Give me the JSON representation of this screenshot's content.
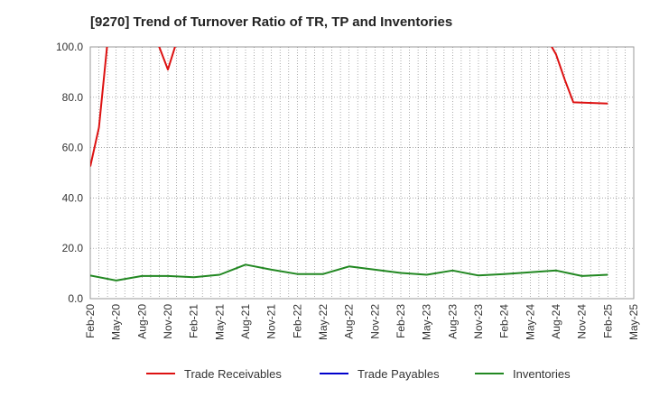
{
  "chart_data": {
    "type": "line",
    "title": "[9270]  Trend of Turnover Ratio of TR, TP and Inventories",
    "xlabel": "",
    "ylabel": "",
    "ylim": [
      0,
      100
    ],
    "yticks": [
      "0.0",
      "20.0",
      "40.0",
      "60.0",
      "80.0",
      "100.0"
    ],
    "x_tick_labels": [
      "Feb-20",
      "May-20",
      "Aug-20",
      "Nov-20",
      "Feb-21",
      "May-21",
      "Aug-21",
      "Nov-21",
      "Feb-22",
      "May-22",
      "Aug-22",
      "Nov-22",
      "Feb-23",
      "May-23",
      "Aug-23",
      "Nov-23",
      "Feb-24",
      "May-24",
      "Aug-24",
      "Nov-24",
      "Feb-25",
      "May-25"
    ],
    "x_start": "Feb-20",
    "grid": true,
    "legend_position": "bottom",
    "series": [
      {
        "name": "Trade Receivables",
        "color": "#dd1111",
        "points": [
          [
            "Feb-20",
            52.5
          ],
          [
            "Mar-20",
            68
          ],
          [
            "Apr-20",
            102
          ],
          [
            "Sep-20",
            103
          ],
          [
            "Oct-20",
            100
          ],
          [
            "Nov-20",
            91
          ],
          [
            "Dec-20",
            102
          ],
          [
            "Jul-24",
            103
          ],
          [
            "Aug-24",
            97
          ],
          [
            "Sep-24",
            87
          ],
          [
            "Oct-24",
            78
          ],
          [
            "Feb-25",
            77.5
          ]
        ]
      },
      {
        "name": "Trade Payables",
        "color": "#0000cc",
        "points": []
      },
      {
        "name": "Inventories",
        "color": "#228822",
        "points": [
          [
            "Feb-20",
            9.2
          ],
          [
            "May-20",
            7.2
          ],
          [
            "Aug-20",
            9
          ],
          [
            "Nov-20",
            9
          ],
          [
            "Feb-21",
            8.5
          ],
          [
            "May-21",
            9.5
          ],
          [
            "Aug-21",
            13.5
          ],
          [
            "Nov-21",
            11.5
          ],
          [
            "Feb-22",
            9.8
          ],
          [
            "May-22",
            9.8
          ],
          [
            "Aug-22",
            12.8
          ],
          [
            "Nov-22",
            11.5
          ],
          [
            "Feb-23",
            10.2
          ],
          [
            "May-23",
            9.5
          ],
          [
            "Aug-23",
            11.2
          ],
          [
            "Nov-23",
            9.2
          ],
          [
            "Feb-24",
            9.8
          ],
          [
            "May-24",
            10.5
          ],
          [
            "Aug-24",
            11.2
          ],
          [
            "Nov-24",
            9
          ],
          [
            "Feb-25",
            9.5
          ]
        ]
      }
    ]
  }
}
